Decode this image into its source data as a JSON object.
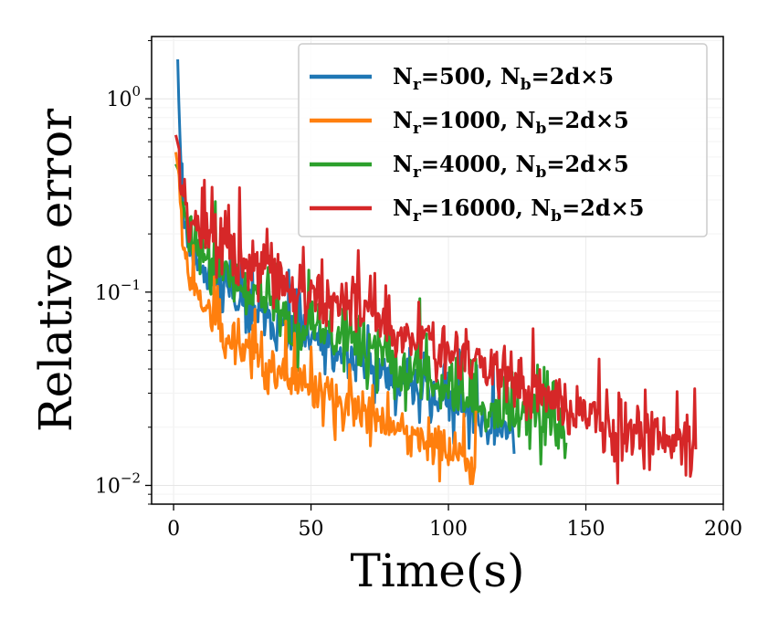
{
  "chart_data": {
    "type": "line",
    "xlabel": "Time(s)",
    "ylabel": "Relative error",
    "xlim": [
      -8,
      200
    ],
    "ylim": [
      0.008,
      2.1
    ],
    "yscale": "log",
    "grid": true,
    "legend_position": "top-right",
    "x_ticks": [
      0,
      50,
      100,
      150,
      200
    ],
    "x_tick_labels": [
      "0",
      "50",
      "100",
      "150",
      "200"
    ],
    "y_ticks": [
      1,
      0.1,
      0.01
    ],
    "y_tick_labels": [
      {
        "base": "10",
        "exp": "0"
      },
      {
        "base": "10",
        "exp": "−1"
      },
      {
        "base": "10",
        "exp": "−2"
      }
    ],
    "series": [
      {
        "name": "N_r=500, N_b=2d×5",
        "legend": {
          "main1": "N",
          "sub1": "r",
          "eq1": "=500, ",
          "main2": "N",
          "sub2": "b",
          "eq2": "=2d×5"
        },
        "color": "#1f77b4",
        "end_time": 124,
        "noise": 0.13,
        "spike_prob": 0.1,
        "seed": 11,
        "points": [
          [
            1.5,
            1.6
          ],
          [
            2,
            0.85
          ],
          [
            3,
            0.35
          ],
          [
            4,
            0.24
          ],
          [
            6,
            0.17
          ],
          [
            10,
            0.13
          ],
          [
            20,
            0.095
          ],
          [
            40,
            0.065
          ],
          [
            60,
            0.048
          ],
          [
            80,
            0.036
          ],
          [
            100,
            0.027
          ],
          [
            115,
            0.021
          ],
          [
            124,
            0.018
          ]
        ]
      },
      {
        "name": "N_r=1000, N_b=2d×5",
        "legend": {
          "main1": "N",
          "sub1": "r",
          "eq1": "=1000, ",
          "main2": "N",
          "sub2": "b",
          "eq2": "=2d×5"
        },
        "color": "#ff7f0e",
        "end_time": 110,
        "noise": 0.11,
        "spike_prob": 0.06,
        "seed": 23,
        "points": [
          [
            0.8,
            0.53
          ],
          [
            2,
            0.4
          ],
          [
            3,
            0.22
          ],
          [
            4,
            0.16
          ],
          [
            6,
            0.12
          ],
          [
            10,
            0.09
          ],
          [
            15,
            0.07
          ],
          [
            20,
            0.058
          ],
          [
            30,
            0.045
          ],
          [
            40,
            0.037
          ],
          [
            50,
            0.032
          ],
          [
            60,
            0.027
          ],
          [
            70,
            0.023
          ],
          [
            80,
            0.02
          ],
          [
            90,
            0.017
          ],
          [
            100,
            0.015
          ],
          [
            110,
            0.013
          ]
        ]
      },
      {
        "name": "N_r=4000, N_b=2d×5",
        "legend": {
          "main1": "N",
          "sub1": "r",
          "eq1": "=4000, ",
          "main2": "N",
          "sub2": "b",
          "eq2": "=2d×5"
        },
        "color": "#2ca02c",
        "end_time": 143,
        "noise": 0.15,
        "spike_prob": 0.12,
        "seed": 37,
        "points": [
          [
            0.8,
            0.46
          ],
          [
            2,
            0.42
          ],
          [
            3,
            0.3
          ],
          [
            5,
            0.22
          ],
          [
            10,
            0.16
          ],
          [
            20,
            0.12
          ],
          [
            30,
            0.095
          ],
          [
            40,
            0.078
          ],
          [
            50,
            0.065
          ],
          [
            60,
            0.057
          ],
          [
            70,
            0.05
          ],
          [
            80,
            0.043
          ],
          [
            90,
            0.037
          ],
          [
            100,
            0.032
          ],
          [
            110,
            0.027
          ],
          [
            120,
            0.024
          ],
          [
            130,
            0.021
          ],
          [
            143,
            0.018
          ]
        ]
      },
      {
        "name": "N_r=16000, N_b=2d×5",
        "legend": {
          "main1": "N",
          "sub1": "r",
          "eq1": "=16000, ",
          "main2": "N",
          "sub2": "b",
          "eq2": "=2d×5"
        },
        "color": "#d62728",
        "end_time": 190,
        "noise": 0.15,
        "spike_prob": 0.11,
        "seed": 53,
        "points": [
          [
            0.8,
            0.65
          ],
          [
            2,
            0.55
          ],
          [
            3,
            0.4
          ],
          [
            5,
            0.26
          ],
          [
            10,
            0.2
          ],
          [
            20,
            0.16
          ],
          [
            30,
            0.135
          ],
          [
            40,
            0.115
          ],
          [
            50,
            0.1
          ],
          [
            60,
            0.088
          ],
          [
            70,
            0.076
          ],
          [
            80,
            0.066
          ],
          [
            90,
            0.057
          ],
          [
            100,
            0.049
          ],
          [
            110,
            0.042
          ],
          [
            120,
            0.036
          ],
          [
            130,
            0.031
          ],
          [
            140,
            0.027
          ],
          [
            150,
            0.024
          ],
          [
            160,
            0.021
          ],
          [
            170,
            0.019
          ],
          [
            180,
            0.018
          ],
          [
            190,
            0.017
          ]
        ]
      }
    ]
  }
}
